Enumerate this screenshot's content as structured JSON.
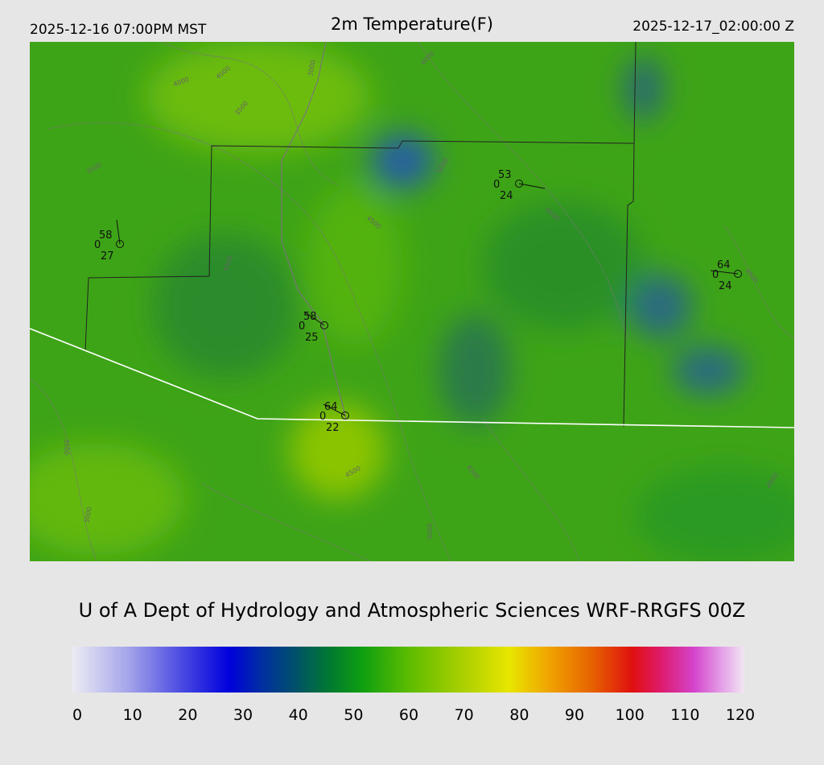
{
  "header": {
    "left": "2025-12-16 07:00PM MST",
    "title": "2m Temperature(F)",
    "right": "2025-12-17_02:00:00 Z"
  },
  "stations": [
    {
      "temperature": 58,
      "cover": "0",
      "dewpoint": 27
    },
    {
      "temperature": 58,
      "cover": "0",
      "dewpoint": 25
    },
    {
      "temperature": 64,
      "cover": "0",
      "dewpoint": 22
    },
    {
      "temperature": 53,
      "cover": "0",
      "dewpoint": 24
    },
    {
      "temperature": 64,
      "cover": "0",
      "dewpoint": 24
    }
  ],
  "contour_labels": [
    "3000",
    "4000",
    "4000",
    "3500",
    "4000",
    "3500",
    "4500",
    "4500",
    "5000",
    "4500",
    "4500",
    "3000",
    "3500",
    "4500",
    "4500",
    "5000",
    "4500"
  ],
  "footer": "U of A Dept of Hydrology and Atmospheric Sciences WRF-RRGFS 00Z",
  "colorbar": {
    "range": [
      0,
      120
    ],
    "ticks": [
      0,
      10,
      20,
      30,
      40,
      50,
      60,
      70,
      80,
      90,
      100,
      110,
      120
    ],
    "stops": [
      {
        "value": 0,
        "color": "#ececf4"
      },
      {
        "value": 10,
        "color": "#a4a4ea"
      },
      {
        "value": 20,
        "color": "#4646e2"
      },
      {
        "value": 28,
        "color": "#0000dc"
      },
      {
        "value": 34,
        "color": "#0030a0"
      },
      {
        "value": 40,
        "color": "#005268"
      },
      {
        "value": 46,
        "color": "#007a30"
      },
      {
        "value": 52,
        "color": "#10a010"
      },
      {
        "value": 60,
        "color": "#5cbc00"
      },
      {
        "value": 70,
        "color": "#acd000"
      },
      {
        "value": 78,
        "color": "#e8e600"
      },
      {
        "value": 85,
        "color": "#f0a400"
      },
      {
        "value": 93,
        "color": "#e66000"
      },
      {
        "value": 100,
        "color": "#e01010"
      },
      {
        "value": 105,
        "color": "#de1a6a"
      },
      {
        "value": 111,
        "color": "#d444cc"
      },
      {
        "value": 116,
        "color": "#e4a0e8"
      },
      {
        "value": 120,
        "color": "#f2e6f2"
      }
    ]
  }
}
